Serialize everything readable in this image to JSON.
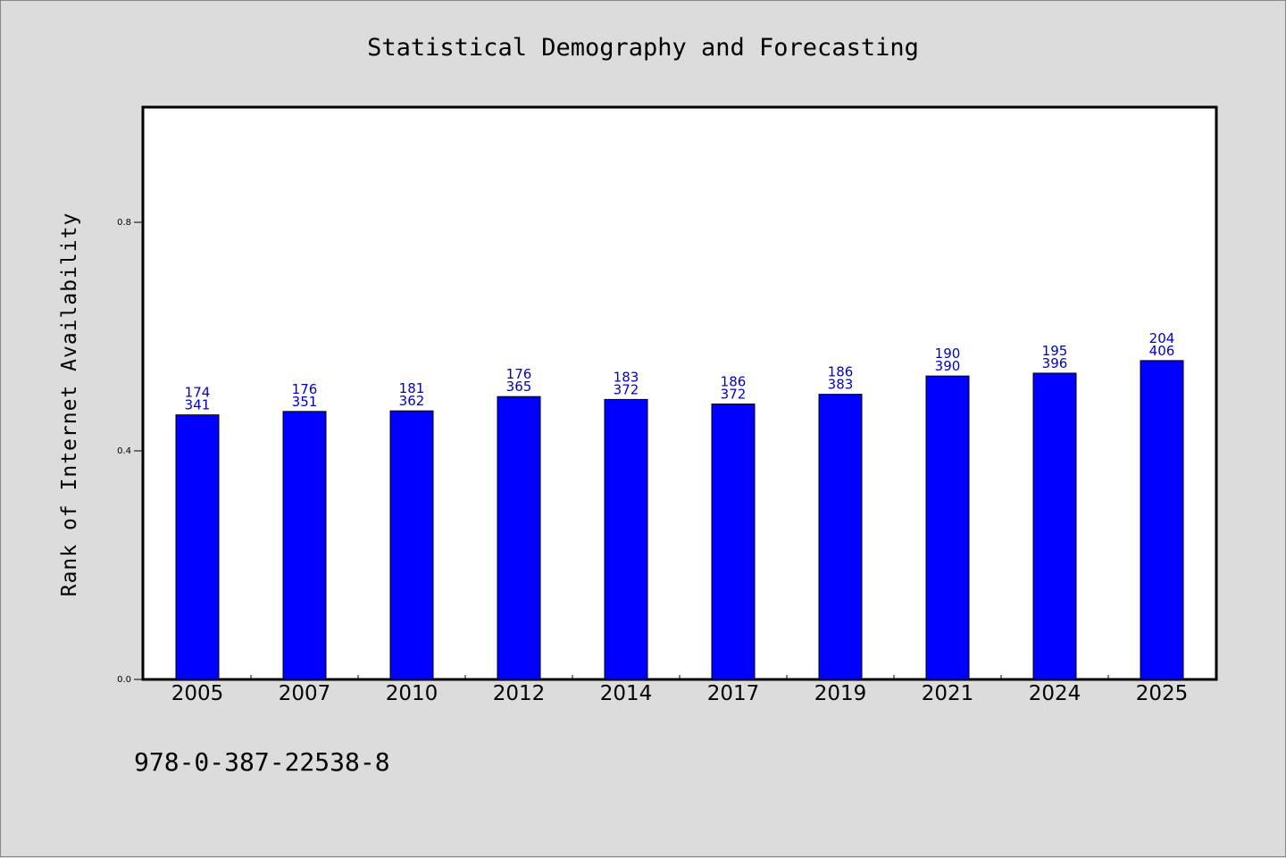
{
  "chart_data": {
    "type": "bar",
    "title": "Statistical Demography and Forecasting",
    "ylabel": "Rank of Internet Availability",
    "xlabel": "",
    "categories": [
      "2005",
      "2007",
      "2010",
      "2012",
      "2014",
      "2017",
      "2019",
      "2021",
      "2024",
      "2025"
    ],
    "values": [
      0.463,
      0.469,
      0.47,
      0.495,
      0.49,
      0.482,
      0.499,
      0.531,
      0.536,
      0.558
    ],
    "data_labels_top": [
      "174",
      "176",
      "181",
      "176",
      "183",
      "186",
      "186",
      "190",
      "195",
      "204"
    ],
    "data_labels_bottom": [
      "341",
      "351",
      "362",
      "365",
      "372",
      "372",
      "383",
      "390",
      "396",
      "406"
    ],
    "ylim": [
      0,
      1.0
    ],
    "yticks": [
      0.0,
      0.4,
      0.8
    ],
    "ytick_labels": [
      "0.0",
      "0.4",
      "0.8"
    ],
    "bar_color": "#0000ff",
    "label_color": "#0000cc",
    "grid": false,
    "legend": "none"
  },
  "footer": {
    "isbn": "978-0-387-22538-8"
  }
}
